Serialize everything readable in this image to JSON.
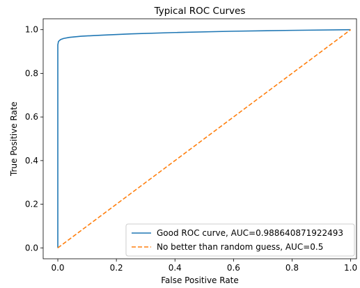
{
  "chart_data": {
    "type": "line",
    "title": "Typical ROC Curves",
    "xlabel": "False Positive Rate",
    "ylabel": "True Positive Rate",
    "xlim": [
      -0.05,
      1.02
    ],
    "ylim": [
      -0.05,
      1.05
    ],
    "xticks": [
      0.0,
      0.2,
      0.4,
      0.6,
      0.8,
      1.0
    ],
    "xtick_labels": [
      "0.0",
      "0.2",
      "0.4",
      "0.6",
      "0.8",
      "1.0"
    ],
    "yticks": [
      0.0,
      0.2,
      0.4,
      0.6,
      0.8,
      1.0
    ],
    "ytick_labels": [
      "0.0",
      "0.2",
      "0.4",
      "0.6",
      "0.8",
      "1.0"
    ],
    "grid": false,
    "legend_position": "lower-right",
    "series": [
      {
        "name": "Good ROC curve, AUC=0.988640871922493",
        "color": "#1f77b4",
        "style": "solid",
        "x": [
          0.0,
          0.0,
          0.002,
          0.005,
          0.01,
          0.02,
          0.04,
          0.08,
          0.15,
          0.25,
          0.4,
          0.6,
          0.8,
          1.0
        ],
        "y": [
          0.0,
          0.93,
          0.945,
          0.95,
          0.955,
          0.96,
          0.965,
          0.97,
          0.975,
          0.981,
          0.987,
          0.993,
          0.997,
          1.0
        ]
      },
      {
        "name": "No better than random guess, AUC=0.5",
        "color": "#ff7f0e",
        "style": "dashed",
        "x": [
          0.0,
          1.0
        ],
        "y": [
          0.0,
          1.0
        ]
      }
    ]
  }
}
